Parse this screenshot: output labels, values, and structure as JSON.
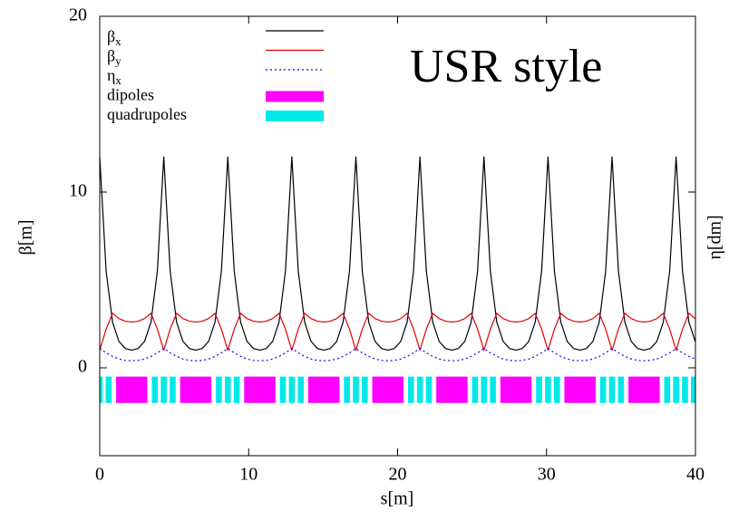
{
  "chart_data": {
    "type": "line",
    "annotation": "USR style",
    "xlabel": "s[m]",
    "ylabel": "β[m]",
    "y2label": "η[dm]",
    "xlim": [
      0,
      40
    ],
    "xticks": [
      0,
      10,
      20,
      30,
      40
    ],
    "ylim": [
      -5,
      20
    ],
    "yticks": [
      0,
      10,
      20
    ],
    "x": [
      0,
      0.43,
      0.86,
      1.29,
      1.72,
      2.15,
      2.58,
      3.01,
      3.44,
      3.87,
      4.3,
      4.73,
      5.16,
      5.59,
      6.02,
      6.45,
      6.88,
      7.31,
      7.74,
      8.17,
      8.6,
      9.03,
      9.46,
      9.89,
      10.32,
      10.75,
      11.18,
      11.61,
      12.04,
      12.47,
      12.9,
      13.33,
      13.76,
      14.19,
      14.62,
      15.05,
      15.48,
      15.91,
      16.34,
      16.77,
      17.2,
      17.63,
      18.06,
      18.49,
      18.92,
      19.35,
      19.78,
      20.21,
      20.64,
      21.07,
      21.5,
      21.93,
      22.36,
      22.79,
      23.22,
      23.65,
      24.08,
      24.51,
      24.94,
      25.37,
      25.8,
      26.23,
      26.66,
      27.09,
      27.52,
      27.95,
      28.38,
      28.81,
      29.24,
      29.67,
      30.1,
      30.53,
      30.96,
      31.39,
      31.82,
      32.25,
      32.68,
      33.11,
      33.54,
      33.97,
      34.4,
      34.83,
      35.26,
      35.69,
      36.12,
      36.55,
      36.98,
      37.41,
      37.84,
      38.27,
      38.7,
      39.13,
      39.56,
      39.99
    ],
    "series": [
      {
        "name": "β",
        "subscript": "x",
        "color": "#000000",
        "dash": false,
        "values": [
          12,
          5.5,
          2.6,
          1.5,
          1.1,
          1,
          1.1,
          1.5,
          2.6,
          5.5,
          12,
          5.5,
          2.6,
          1.5,
          1.1,
          1,
          1.1,
          1.5,
          2.6,
          5.5,
          12,
          5.5,
          2.6,
          1.5,
          1.1,
          1,
          1.1,
          1.5,
          2.6,
          5.5,
          12,
          5.5,
          2.6,
          1.5,
          1.1,
          1,
          1.1,
          1.5,
          2.6,
          5.5,
          12,
          5.5,
          2.6,
          1.5,
          1.1,
          1,
          1.1,
          1.5,
          2.6,
          5.5,
          12,
          5.5,
          2.6,
          1.5,
          1.1,
          1,
          1.1,
          1.5,
          2.6,
          5.5,
          12,
          5.5,
          2.6,
          1.5,
          1.1,
          1,
          1.1,
          1.5,
          2.6,
          5.5,
          12,
          5.5,
          2.6,
          1.5,
          1.1,
          1,
          1.1,
          1.5,
          2.6,
          5.5,
          12,
          5.5,
          2.6,
          1.5,
          1.1,
          1,
          1.1,
          1.5,
          2.6,
          5.5,
          12,
          5.5,
          2.6,
          1.5
        ]
      },
      {
        "name": "β",
        "subscript": "y",
        "color": "#e00000",
        "dash": false,
        "values": [
          1,
          2.2,
          3.1,
          2.8,
          2.65,
          2.6,
          2.65,
          2.8,
          3.1,
          2.2,
          1,
          2.2,
          3.1,
          2.8,
          2.65,
          2.6,
          2.65,
          2.8,
          3.1,
          2.2,
          1,
          2.2,
          3.1,
          2.8,
          2.65,
          2.6,
          2.65,
          2.8,
          3.1,
          2.2,
          1,
          2.2,
          3.1,
          2.8,
          2.65,
          2.6,
          2.65,
          2.8,
          3.1,
          2.2,
          1,
          2.2,
          3.1,
          2.8,
          2.65,
          2.6,
          2.65,
          2.8,
          3.1,
          2.2,
          1,
          2.2,
          3.1,
          2.8,
          2.65,
          2.6,
          2.65,
          2.8,
          3.1,
          2.2,
          1,
          2.2,
          3.1,
          2.8,
          2.65,
          2.6,
          2.65,
          2.8,
          3.1,
          2.2,
          1,
          2.2,
          3.1,
          2.8,
          2.65,
          2.6,
          2.65,
          2.8,
          3.1,
          2.2,
          1,
          2.2,
          3.1,
          2.8,
          2.65,
          2.6,
          2.65,
          2.8,
          3.1,
          2.2,
          1,
          2.2,
          3.1,
          2.8
        ]
      },
      {
        "name": "η",
        "subscript": "x",
        "color": "#0000ff",
        "dash": true,
        "values": [
          1.1,
          0.85,
          0.65,
          0.5,
          0.42,
          0.4,
          0.42,
          0.5,
          0.65,
          0.85,
          1.1,
          0.85,
          0.65,
          0.5,
          0.42,
          0.4,
          0.42,
          0.5,
          0.65,
          0.85,
          1.1,
          0.85,
          0.65,
          0.5,
          0.42,
          0.4,
          0.42,
          0.5,
          0.65,
          0.85,
          1.1,
          0.85,
          0.65,
          0.5,
          0.42,
          0.4,
          0.42,
          0.5,
          0.65,
          0.85,
          1.1,
          0.85,
          0.65,
          0.5,
          0.42,
          0.4,
          0.42,
          0.5,
          0.65,
          0.85,
          1.1,
          0.85,
          0.65,
          0.5,
          0.42,
          0.4,
          0.42,
          0.5,
          0.65,
          0.85,
          1.1,
          0.85,
          0.65,
          0.5,
          0.42,
          0.4,
          0.42,
          0.5,
          0.65,
          0.85,
          1.1,
          0.85,
          0.65,
          0.5,
          0.42,
          0.4,
          0.42,
          0.5,
          0.65,
          0.85,
          1.1,
          0.85,
          0.65,
          0.5,
          0.42,
          0.4,
          0.42,
          0.5,
          0.65,
          0.85,
          1.1,
          0.85,
          0.65,
          0.5
        ]
      }
    ],
    "magnets": [
      {
        "name": "dipoles",
        "color": "#ff00ff",
        "y": [
          -2,
          -0.5
        ],
        "intervals": [
          [
            1.1,
            3.2
          ],
          [
            5.4,
            7.5
          ],
          [
            9.7,
            11.8
          ],
          [
            14,
            16.1
          ],
          [
            18.3,
            20.4
          ],
          [
            22.6,
            24.7
          ],
          [
            26.9,
            29
          ],
          [
            31.2,
            33.3
          ],
          [
            35.5,
            37.6
          ]
        ]
      },
      {
        "name": "quadrupoles",
        "color": "#00e8e8",
        "y": [
          -2,
          -0.5
        ],
        "intervals": [
          [
            0,
            0.2
          ],
          [
            0.4,
            0.8
          ],
          [
            3.5,
            3.9
          ],
          [
            4.1,
            4.5
          ],
          [
            4.7,
            5.1
          ],
          [
            7.8,
            8.2
          ],
          [
            8.4,
            8.8
          ],
          [
            9,
            9.4
          ],
          [
            12.1,
            12.5
          ],
          [
            12.7,
            13.1
          ],
          [
            13.3,
            13.7
          ],
          [
            16.4,
            16.8
          ],
          [
            17,
            17.4
          ],
          [
            17.6,
            18
          ],
          [
            20.7,
            21.1
          ],
          [
            21.3,
            21.7
          ],
          [
            21.9,
            22.3
          ],
          [
            25,
            25.4
          ],
          [
            25.6,
            26
          ],
          [
            26.2,
            26.6
          ],
          [
            29.3,
            29.7
          ],
          [
            29.9,
            30.3
          ],
          [
            30.5,
            30.9
          ],
          [
            33.6,
            34
          ],
          [
            34.2,
            34.6
          ],
          [
            34.8,
            35.2
          ],
          [
            37.9,
            38.3
          ],
          [
            38.5,
            38.9
          ],
          [
            39.1,
            39.5
          ],
          [
            39.7,
            40
          ]
        ]
      }
    ]
  }
}
